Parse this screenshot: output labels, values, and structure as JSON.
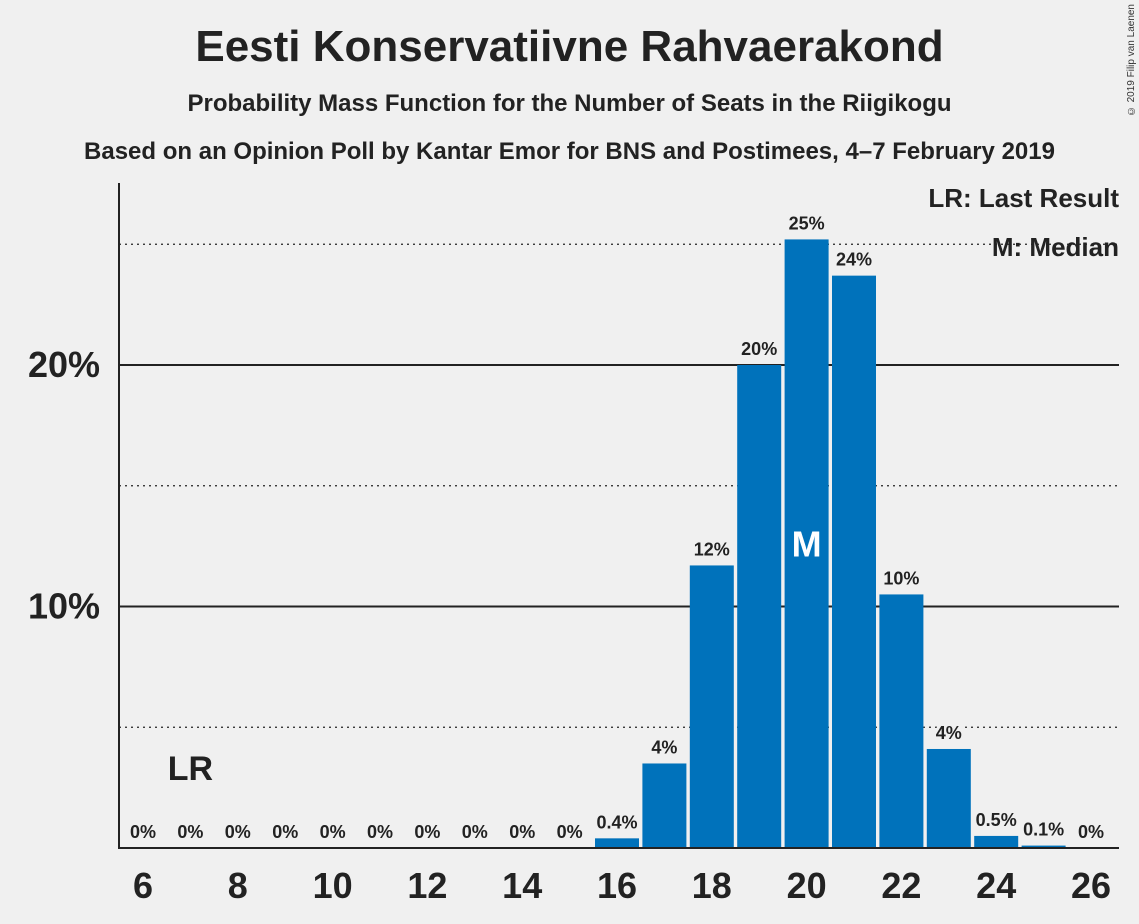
{
  "title": "Eesti Konservatiivne Rahvaerakond",
  "subtitle": "Probability Mass Function for the Number of Seats in the Riigikogu",
  "subtitle2": "Based on an Opinion Poll by Kantar Emor for BNS and Postimees, 4–7 February 2019",
  "copyright": "© 2019 Filip van Laenen",
  "legend": {
    "last_result": "LR: Last Result",
    "median": "M: Median"
  },
  "colors": {
    "bar": "#0072bb",
    "background": "#f0f0f0",
    "text": "#222222"
  },
  "chart_data": {
    "type": "bar",
    "title": "Eesti Konservatiivne Rahvaerakond",
    "x": [
      6,
      7,
      8,
      9,
      10,
      11,
      12,
      13,
      14,
      15,
      16,
      17,
      18,
      19,
      20,
      21,
      22,
      23,
      24,
      25,
      26
    ],
    "values": [
      0,
      0,
      0,
      0,
      0,
      0,
      0,
      0,
      0,
      0,
      0.4,
      3.5,
      11.7,
      20.0,
      25.2,
      23.7,
      10.5,
      4.1,
      0.5,
      0.1,
      0
    ],
    "data_labels": [
      "0%",
      "0%",
      "0%",
      "0%",
      "0%",
      "0%",
      "0%",
      "0%",
      "0%",
      "0%",
      "0.4%",
      "4%",
      "12%",
      "20%",
      "25%",
      "24%",
      "10%",
      "4%",
      "0.5%",
      "0.1%",
      "0%"
    ],
    "x_tick_labels": [
      "6",
      "8",
      "10",
      "12",
      "14",
      "16",
      "18",
      "20",
      "22",
      "24",
      "26"
    ],
    "y_tick_labels": [
      "10%",
      "20%"
    ],
    "ylim": [
      0,
      27.4
    ],
    "major_gridlines": [
      10,
      20
    ],
    "minor_gridlines": [
      5,
      15,
      25
    ],
    "last_result": {
      "seat": 7,
      "label": "LR"
    },
    "median": {
      "seat": 20,
      "label": "M"
    }
  }
}
